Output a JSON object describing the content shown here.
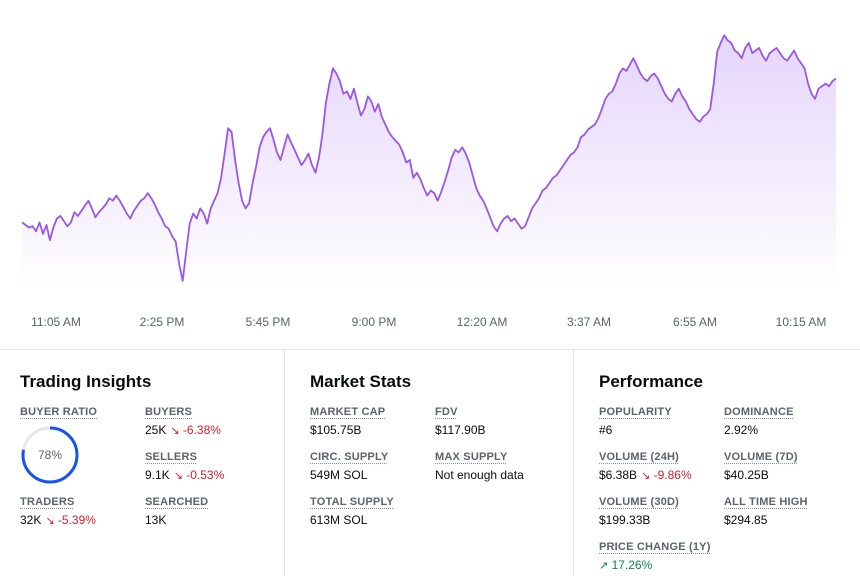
{
  "chart_data": {
    "type": "area",
    "x_labels": [
      "11:05 AM",
      "2:25 PM",
      "5:45 PM",
      "9:00 PM",
      "12:20 AM",
      "3:37 AM",
      "6:55 AM",
      "10:15 AM"
    ],
    "values": [
      251,
      249,
      247,
      248,
      244,
      251,
      242,
      249,
      237,
      247,
      254,
      256,
      252,
      248,
      251,
      259,
      256,
      260,
      264,
      268,
      262,
      255,
      259,
      262,
      265,
      270,
      268,
      272,
      268,
      263,
      258,
      254,
      260,
      264,
      268,
      270,
      274,
      270,
      265,
      259,
      254,
      248,
      246,
      240,
      236,
      218,
      205,
      228,
      250,
      258,
      254,
      262,
      258,
      250,
      262,
      268,
      274,
      286,
      305,
      325,
      322,
      300,
      282,
      268,
      262,
      266,
      282,
      295,
      310,
      318,
      322,
      325,
      316,
      306,
      300,
      310,
      320,
      314,
      308,
      302,
      296,
      300,
      305,
      296,
      290,
      302,
      320,
      345,
      360,
      372,
      368,
      362,
      352,
      354,
      348,
      356,
      345,
      335,
      340,
      350,
      346,
      338,
      344,
      334,
      328,
      322,
      318,
      315,
      312,
      306,
      298,
      300,
      286,
      290,
      285,
      278,
      272,
      276,
      274,
      268,
      275,
      283,
      292,
      302,
      308,
      306,
      310,
      305,
      298,
      288,
      278,
      272,
      268,
      262,
      255,
      248,
      244,
      250,
      254,
      256,
      252,
      254,
      250,
      246,
      248,
      255,
      262,
      266,
      270,
      276,
      278,
      282,
      286,
      288,
      292,
      296,
      300,
      304,
      306,
      310,
      318,
      320,
      324,
      326,
      328,
      333,
      340,
      348,
      352,
      354,
      360,
      368,
      372,
      370,
      375,
      380,
      374,
      368,
      364,
      362,
      366,
      368,
      364,
      358,
      352,
      348,
      346,
      352,
      356,
      350,
      346,
      340,
      336,
      332,
      330,
      334,
      336,
      340,
      360,
      385,
      392,
      398,
      394,
      392,
      386,
      384,
      380,
      388,
      392,
      384,
      386,
      388,
      382,
      378,
      384,
      386,
      388,
      384,
      380,
      378,
      382,
      386,
      380,
      376,
      372,
      360,
      352,
      348,
      356,
      358,
      360,
      358,
      362,
      364
    ],
    "ylim": [
      190,
      410
    ],
    "grid": false,
    "legend": "none"
  },
  "trading_insights": {
    "title": "Trading Insights",
    "buyer_ratio_label": "BUYER RATIO",
    "buyer_ratio_value": "78%",
    "buyer_ratio_fraction": 0.78,
    "buyers_label": "BUYERS",
    "buyers_value": "25K",
    "buyers_change": "-6.38%",
    "sellers_label": "SELLERS",
    "sellers_value": "9.1K",
    "sellers_change": "-0.53%",
    "traders_label": "TRADERS",
    "traders_value": "32K",
    "traders_change": "-5.39%",
    "searched_label": "SEARCHED",
    "searched_value": "13K"
  },
  "market_stats": {
    "title": "Market Stats",
    "market_cap_label": "MARKET CAP",
    "market_cap_value": "$105.75B",
    "fdv_label": "FDV",
    "fdv_value": "$117.90B",
    "circ_supply_label": "CIRC. SUPPLY",
    "circ_supply_value": "549M SOL",
    "max_supply_label": "MAX SUPPLY",
    "max_supply_value": "Not enough data",
    "total_supply_label": "TOTAL SUPPLY",
    "total_supply_value": "613M SOL"
  },
  "performance": {
    "title": "Performance",
    "popularity_label": "POPULARITY",
    "popularity_value": "#6",
    "dominance_label": "DOMINANCE",
    "dominance_value": "2.92%",
    "volume_24h_label": "VOLUME (24H)",
    "volume_24h_value": "$6.38B",
    "volume_24h_change": "-9.86%",
    "volume_7d_label": "VOLUME (7D)",
    "volume_7d_value": "$40.25B",
    "volume_30d_label": "VOLUME (30D)",
    "volume_30d_value": "$199.33B",
    "ath_label": "ALL TIME HIGH",
    "ath_value": "$294.85",
    "price_change_label": "PRICE CHANGE (1Y)",
    "price_change_value": "17.26%"
  },
  "colors": {
    "line": "#9a57e6",
    "fill_top": "#e4d3fb",
    "negative": "#cf202f",
    "positive": "#098551",
    "ring": "#1652f0",
    "ring_track": "#e6e8ec"
  },
  "icons": {
    "down_arrow": "↘",
    "up_arrow": "↗"
  }
}
